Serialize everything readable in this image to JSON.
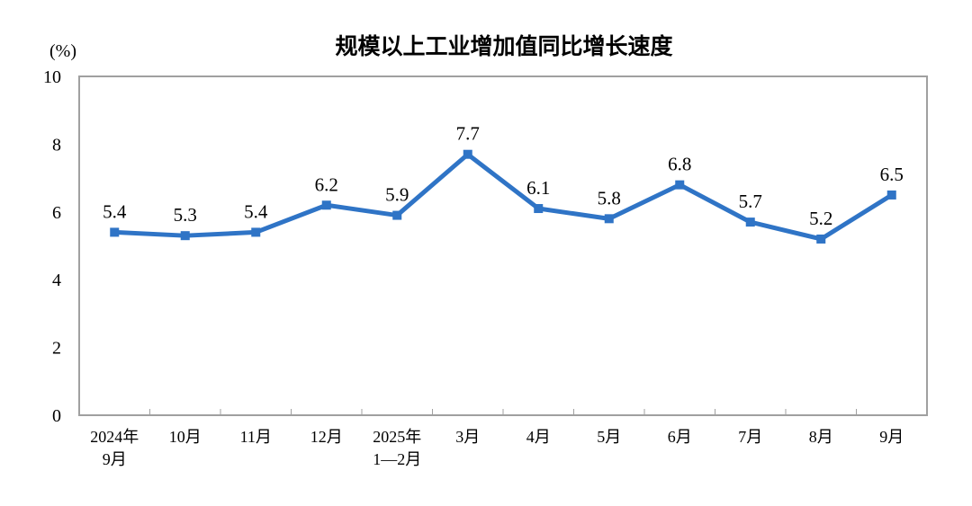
{
  "chart_data": {
    "type": "line",
    "title": "规模以上工业增加值同比增长速度",
    "ylabel": "(%)",
    "xlabel": "",
    "ylim": [
      0,
      10
    ],
    "yticks": [
      "0",
      "2",
      "4",
      "6",
      "8",
      "10"
    ],
    "grid": false,
    "categories": [
      [
        "2024年",
        "9月"
      ],
      [
        "10月"
      ],
      [
        "11月"
      ],
      [
        "12月"
      ],
      [
        "2025年",
        "1—2月"
      ],
      [
        "3月"
      ],
      [
        "4月"
      ],
      [
        "5月"
      ],
      [
        "6月"
      ],
      [
        "7月"
      ],
      [
        "8月"
      ],
      [
        "9月"
      ]
    ],
    "values": [
      5.4,
      5.3,
      5.4,
      6.2,
      5.9,
      7.7,
      6.1,
      5.8,
      6.8,
      5.7,
      5.2,
      6.5
    ],
    "data_labels": [
      "5.4",
      "5.3",
      "5.4",
      "6.2",
      "5.9",
      "7.7",
      "6.1",
      "5.8",
      "6.8",
      "5.7",
      "5.2",
      "6.5"
    ],
    "colors": {
      "line": "#2f74c6",
      "axis": "#a0a0a0"
    }
  }
}
